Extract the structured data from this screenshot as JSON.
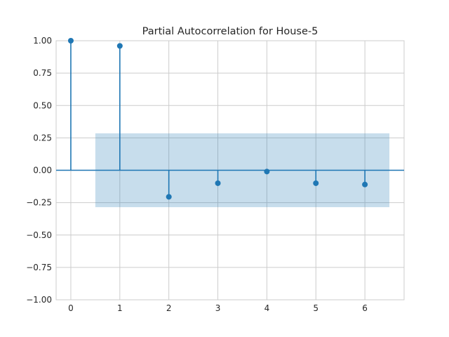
{
  "chart_data": {
    "type": "stem",
    "title": "Partial Autocorrelation for House-5",
    "xlabel": "",
    "ylabel": "",
    "lags": [
      0,
      1,
      2,
      3,
      4,
      5,
      6
    ],
    "values": [
      1.0,
      0.96,
      -0.205,
      -0.1,
      -0.01,
      -0.1,
      -0.11
    ],
    "confidence_band": {
      "lower": -0.285,
      "upper": 0.285,
      "from_lag": 0.5,
      "to_lag": 6.5
    },
    "xlim": [
      -0.3,
      6.8
    ],
    "ylim": [
      -1.0,
      1.0
    ],
    "xticks": [
      "0",
      "1",
      "2",
      "3",
      "4",
      "5",
      "6"
    ],
    "yticks": [
      "1.00",
      "0.75",
      "0.50",
      "0.25",
      "0.00",
      "−0.25",
      "−0.50",
      "−0.75",
      "−1.00"
    ],
    "grid": true,
    "colors": {
      "stem": "#1f77b4",
      "band": "#1f77b4",
      "grid": "#cccccc",
      "spine": "#cccccc"
    }
  }
}
